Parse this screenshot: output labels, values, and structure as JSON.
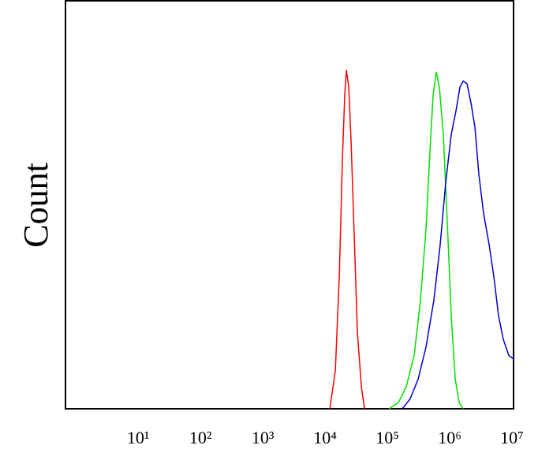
{
  "chart_data": {
    "type": "line",
    "ylabel": "Count",
    "log_x": true,
    "grid": false,
    "xlim": [
      0.68,
      10600000
    ],
    "ylim": [
      0,
      100
    ],
    "xticks": [
      {
        "value": 10,
        "label": "10¹"
      },
      {
        "value": 100,
        "label": "10²"
      },
      {
        "value": 1000,
        "label": "10³"
      },
      {
        "value": 10000,
        "label": "10⁴"
      },
      {
        "value": 100000,
        "label": "10⁵"
      },
      {
        "value": 1000000,
        "label": "10⁶"
      },
      {
        "value": 10000000,
        "label": "10⁷"
      }
    ],
    "series": [
      {
        "color": "#ff0000",
        "x": [
          11900,
          14600,
          16900,
          19000,
          20700,
          22000,
          24000,
          26200,
          29400,
          33000,
          38200,
          43000
        ],
        "values": [
          0,
          9.3,
          32.4,
          61.4,
          76.8,
          83.0,
          78.8,
          65.3,
          42.1,
          18.9,
          5.4,
          0
        ]
      },
      {
        "color": "#00e000",
        "x": [
          106000,
          150000,
          201000,
          269000,
          340000,
          417000,
          483000,
          542000,
          610000,
          684000,
          792000,
          916000,
          1060000,
          1230000,
          1420000,
          1640000
        ],
        "values": [
          0,
          1.5,
          5.4,
          13.1,
          26.6,
          44.0,
          63.3,
          76.8,
          82.6,
          78.8,
          67.2,
          45.9,
          22.8,
          7.3,
          1.5,
          0
        ]
      },
      {
        "color": "#0000cc",
        "x": [
          174000,
          233000,
          312000,
          417000,
          558000,
          705000,
          865000,
          1060000,
          1260000,
          1460000,
          1640000,
          1900000,
          2200000,
          2540000,
          2940000,
          3500000,
          4300000,
          5120000,
          6100000,
          7260000,
          8900000,
          10600000
        ],
        "values": [
          0,
          2.5,
          7.3,
          15.1,
          26.6,
          40.2,
          55.6,
          67.2,
          73.0,
          78.8,
          80.3,
          79.7,
          74.9,
          69.1,
          57.5,
          47.9,
          40.2,
          32.4,
          22.8,
          17.0,
          13.1,
          12.2
        ]
      }
    ]
  }
}
